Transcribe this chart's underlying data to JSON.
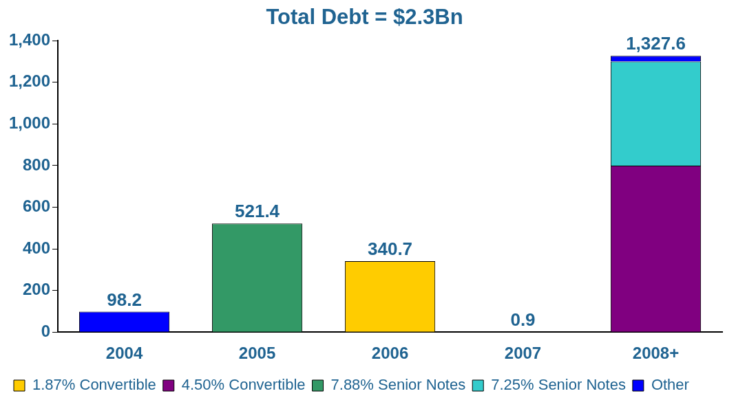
{
  "chart_data": {
    "type": "bar",
    "title": "Total Debt = $2.3Bn",
    "categories": [
      "2004",
      "2005",
      "2006",
      "2007",
      "2008+"
    ],
    "stacked": true,
    "series": [
      {
        "name": "1.87% Convertible",
        "color": "#ffcc00",
        "values": [
          null,
          null,
          340.7,
          null,
          null
        ]
      },
      {
        "name": "4.50% Convertible",
        "color": "#800080",
        "values": [
          null,
          null,
          null,
          null,
          800
        ]
      },
      {
        "name": "7.88% Senior Notes",
        "color": "#339966",
        "values": [
          null,
          521.4,
          null,
          null,
          null
        ]
      },
      {
        "name": "7.25% Senior Notes",
        "color": "#33cccc",
        "values": [
          null,
          null,
          null,
          null,
          500
        ]
      },
      {
        "name": "Other",
        "color": "#0000ff",
        "values": [
          98.2,
          null,
          null,
          0.9,
          27.6
        ]
      }
    ],
    "totals": [
      "98.2",
      "521.4",
      "340.7",
      "0.9",
      "1,327.6"
    ],
    "ylim": [
      0,
      1400
    ],
    "yticks": [
      0,
      200,
      400,
      600,
      800,
      {
        "value": 1000,
        "label": "1,000"
      },
      {
        "value": 1200,
        "label": "1,200"
      },
      {
        "value": 1400,
        "label": "1,400"
      }
    ],
    "grid": false,
    "legend": "bottom"
  }
}
